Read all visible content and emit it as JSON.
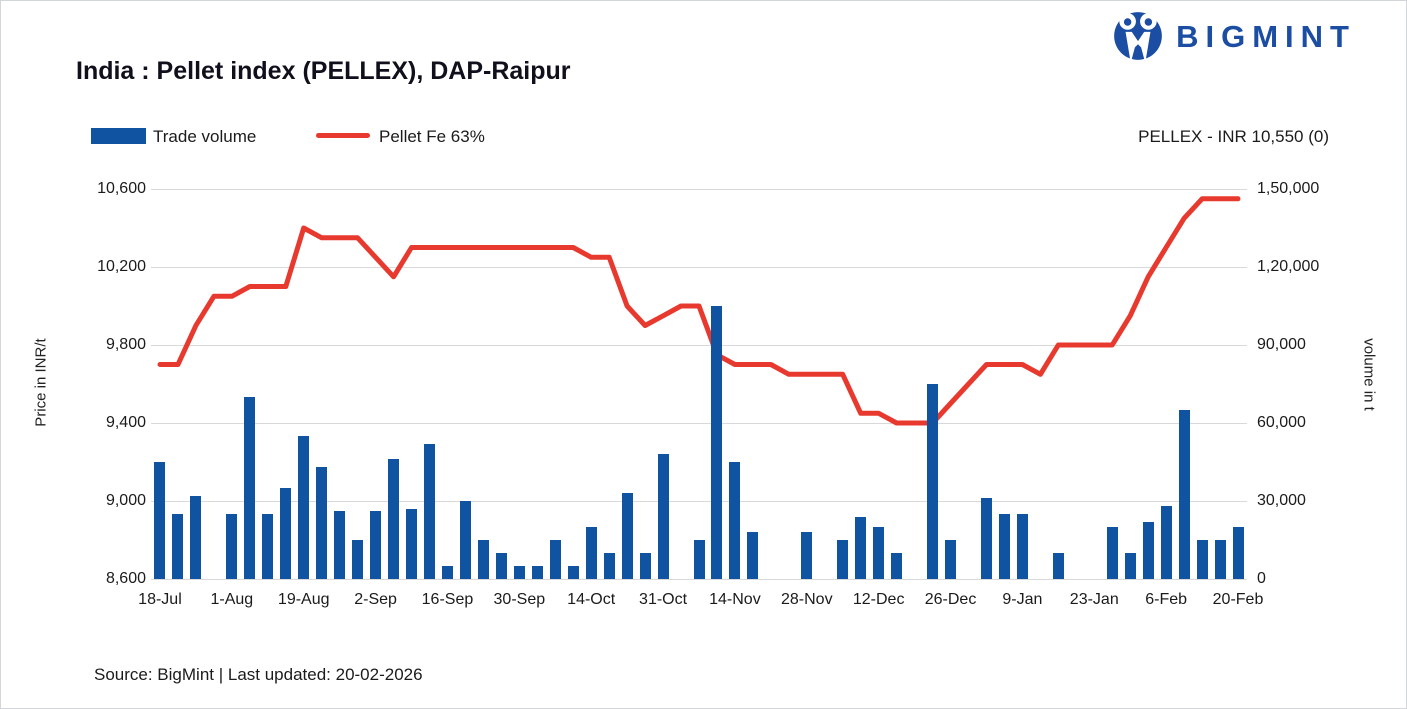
{
  "header": {
    "logo_text": "BIGMINT",
    "title": "India : Pellet index (PELLEX), DAP-Raipur"
  },
  "legend": {
    "bar_label": "Trade volume",
    "line_label": "Pellet Fe 63%",
    "current_value_label": "PELLEX - INR 10,550 (0)"
  },
  "footer": {
    "source_text": "Source: BigMint | Last updated: 20-02-2026"
  },
  "colors": {
    "bar_blue": "#0f53a1",
    "line_red": "#e8392f",
    "logo_blue": "#1b4da2",
    "grid_gray": "#d9d9d9",
    "text_dark": "#1b1b1b"
  },
  "chart_data": {
    "type": "bar+line",
    "title": "India : Pellet index (PELLEX), DAP-Raipur",
    "x_tick_labels": [
      "18-Jul",
      "1-Aug",
      "19-Aug",
      "2-Sep",
      "16-Sep",
      "30-Sep",
      "14-Oct",
      "31-Oct",
      "14-Nov",
      "28-Nov",
      "12-Dec",
      "26-Dec",
      "9-Jan",
      "23-Jan",
      "6-Feb",
      "20-Feb"
    ],
    "label_every_n_slots": 4,
    "num_slots": 61,
    "grid": true,
    "legend_position": "top-left",
    "left_axis": {
      "title": "Price in INR/t",
      "min": 8600,
      "max": 10600,
      "ticks": [
        "10,600",
        "10,200",
        "9,800",
        "9,400",
        "9,000",
        "8,600"
      ]
    },
    "right_axis": {
      "title": "volume in t",
      "min": 0,
      "max": 150000,
      "ticks": [
        "1,50,000",
        "1,20,000",
        "90,000",
        "60,000",
        "30,000",
        "0"
      ]
    },
    "series": [
      {
        "name": "Trade volume",
        "type": "bar",
        "axis": "right",
        "values": [
          45000,
          25000,
          32000,
          0,
          25000,
          70000,
          25000,
          35000,
          55000,
          43000,
          26000,
          15000,
          26000,
          46000,
          27000,
          52000,
          5000,
          30000,
          15000,
          10000,
          5000,
          5000,
          15000,
          5000,
          20000,
          10000,
          33000,
          10000,
          48000,
          0,
          15000,
          105000,
          45000,
          18000,
          0,
          0,
          18000,
          0,
          15000,
          24000,
          20000,
          10000,
          0,
          75000,
          15000,
          0,
          31000,
          25000,
          25000,
          0,
          10000,
          0,
          0,
          20000,
          10000,
          22000,
          28000,
          65000,
          15000,
          15000,
          20000
        ]
      },
      {
        "name": "Pellet Fe 63%",
        "type": "line",
        "axis": "left",
        "values": [
          9700,
          9700,
          9900,
          10050,
          10050,
          10100,
          10100,
          10100,
          10400,
          10350,
          10350,
          10350,
          10250,
          10150,
          10300,
          10300,
          10300,
          10300,
          10300,
          10300,
          10300,
          10300,
          10300,
          10300,
          10250,
          10250,
          10000,
          9900,
          9950,
          10000,
          10000,
          9750,
          9700,
          9700,
          9700,
          9650,
          9650,
          9650,
          9650,
          9450,
          9450,
          9400,
          9400,
          9400,
          9500,
          9600,
          9700,
          9700,
          9700,
          9650,
          9800,
          9800,
          9800,
          9800,
          9950,
          10150,
          10300,
          10450,
          10550,
          10550,
          10550
        ]
      }
    ]
  }
}
